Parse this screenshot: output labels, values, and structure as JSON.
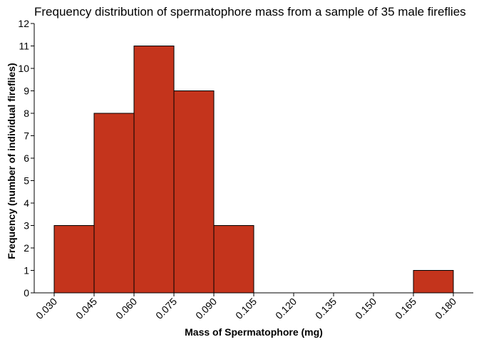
{
  "chart_data": {
    "type": "bar",
    "title": "Frequency distribution of spermatophore mass from a sample of 35 male fireflies",
    "xlabel": "Mass of Spermatophore (mg)",
    "ylabel": "Frequency (number of individual fireflies)",
    "x_ticks": [
      "0.030",
      "0.045",
      "0.060",
      "0.075",
      "0.090",
      "0.105",
      "0.120",
      "0.135",
      "0.150",
      "0.165",
      "0.180"
    ],
    "y_ticks": [
      "0",
      "1",
      "2",
      "3",
      "4",
      "5",
      "6",
      "7",
      "8",
      "9",
      "10",
      "11",
      "12"
    ],
    "xlim": [
      0.0225,
      0.1875
    ],
    "ylim": [
      0,
      12
    ],
    "bins": [
      {
        "start": 0.03,
        "end": 0.045,
        "count": 3
      },
      {
        "start": 0.045,
        "end": 0.06,
        "count": 8
      },
      {
        "start": 0.06,
        "end": 0.075,
        "count": 11
      },
      {
        "start": 0.075,
        "end": 0.09,
        "count": 9
      },
      {
        "start": 0.09,
        "end": 0.105,
        "count": 3
      },
      {
        "start": 0.165,
        "end": 0.18,
        "count": 1
      }
    ],
    "bar_color": "#c4341c",
    "grid": false,
    "legend": "none"
  }
}
